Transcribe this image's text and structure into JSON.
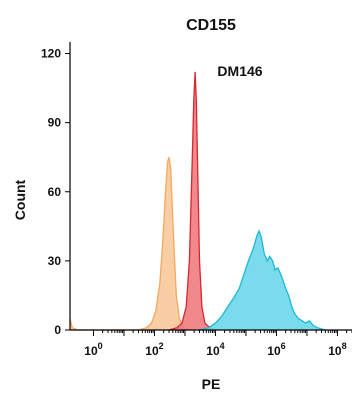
{
  "chart_data": {
    "type": "area",
    "title": "CD155",
    "annotation": "DM146",
    "xlabel": "PE",
    "ylabel": "Count",
    "x_scale": "log",
    "xlim": [
      0.17,
      300000000
    ],
    "ylim": [
      0,
      125
    ],
    "y_ticks": [
      0,
      30,
      60,
      90,
      120
    ],
    "x_ticks": [
      {
        "base": "10",
        "exp": "0",
        "value": 1
      },
      {
        "base": "10",
        "exp": "2",
        "value": 100
      },
      {
        "base": "10",
        "exp": "4",
        "value": 10000
      },
      {
        "base": "10",
        "exp": "6",
        "value": 1000000
      },
      {
        "base": "10",
        "exp": "8",
        "value": 100000000
      }
    ],
    "series": [
      {
        "color": "#f4a75e",
        "fill": "#f8c99a",
        "points": [
          [
            0.17,
            5
          ],
          [
            0.2,
            1
          ],
          [
            0.3,
            0
          ],
          [
            30,
            0
          ],
          [
            55,
            1
          ],
          [
            80,
            3
          ],
          [
            110,
            8
          ],
          [
            150,
            20
          ],
          [
            190,
            40
          ],
          [
            230,
            60
          ],
          [
            270,
            73
          ],
          [
            300,
            75
          ],
          [
            340,
            70
          ],
          [
            380,
            55
          ],
          [
            440,
            35
          ],
          [
            520,
            15
          ],
          [
            650,
            5
          ],
          [
            900,
            1
          ],
          [
            1500,
            0
          ]
        ]
      },
      {
        "color": "#d9262f",
        "fill": "#ef7b80",
        "points": [
          [
            300,
            0
          ],
          [
            550,
            1
          ],
          [
            800,
            3
          ],
          [
            1100,
            10
          ],
          [
            1400,
            30
          ],
          [
            1700,
            70
          ],
          [
            1950,
            100
          ],
          [
            2150,
            112
          ],
          [
            2350,
            100
          ],
          [
            2650,
            65
          ],
          [
            3000,
            30
          ],
          [
            3600,
            10
          ],
          [
            4500,
            3
          ],
          [
            6500,
            1
          ],
          [
            9000,
            0
          ]
        ]
      },
      {
        "color": "#1fb8d2",
        "fill": "#6cd6ec",
        "points": [
          [
            3000,
            0
          ],
          [
            6000,
            1
          ],
          [
            10000,
            3
          ],
          [
            16000,
            6
          ],
          [
            25000,
            10
          ],
          [
            40000,
            14
          ],
          [
            60000,
            18
          ],
          [
            90000,
            25
          ],
          [
            120000,
            30
          ],
          [
            170000,
            35
          ],
          [
            230000,
            41
          ],
          [
            270000,
            43
          ],
          [
            320000,
            40
          ],
          [
            400000,
            33
          ],
          [
            500000,
            30
          ],
          [
            600000,
            32
          ],
          [
            750000,
            30
          ],
          [
            900000,
            26
          ],
          [
            1100000,
            27
          ],
          [
            1300000,
            25
          ],
          [
            1600000,
            22
          ],
          [
            2000000,
            18
          ],
          [
            2500000,
            15
          ],
          [
            3200000,
            10
          ],
          [
            4000000,
            7
          ],
          [
            5200000,
            5
          ],
          [
            7000000,
            4
          ],
          [
            9000000,
            3
          ],
          [
            12000000,
            4
          ],
          [
            16000000,
            2
          ],
          [
            22000000,
            1
          ],
          [
            40000000,
            0
          ]
        ]
      }
    ]
  }
}
